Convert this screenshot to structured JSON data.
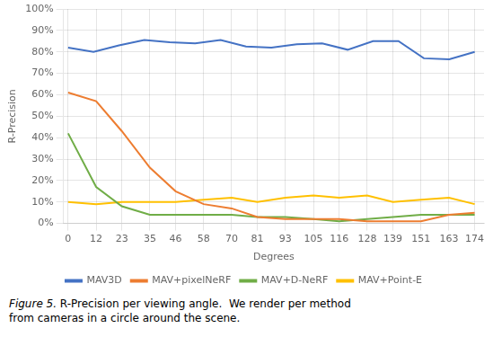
{
  "chart_data": {
    "type": "line",
    "x_label": "Degrees",
    "y_label": "R-Precision",
    "caption": [
      "Figure 5.",
      " R-Precision per viewing angle.  We render per method\nfrom cameras in a circle around the scene."
    ],
    "series": [
      {
        "name": "MAV3D",
        "color": "#4472C4",
        "x": [
          0,
          10.875,
          21.75,
          32.625,
          43.5,
          54.375,
          65.25,
          76.125,
          87,
          97.875,
          108.75,
          119.625,
          130.5,
          141.375,
          152.25,
          163.125,
          174
        ],
        "values": [
          0.82,
          0.8,
          0.83,
          0.855,
          0.845,
          0.84,
          0.855,
          0.825,
          0.82,
          0.835,
          0.84,
          0.81,
          0.85,
          0.85,
          0.77,
          0.765,
          0.8
        ]
      },
      {
        "name": "MAV+pixelNeRF",
        "color": "#ED7D31",
        "x": [
          0,
          12,
          23,
          35,
          46,
          58,
          70,
          81,
          93,
          105,
          116,
          128,
          139,
          151,
          163,
          174
        ],
        "values": [
          0.61,
          0.57,
          0.43,
          0.26,
          0.15,
          0.09,
          0.07,
          0.03,
          0.02,
          0.02,
          0.02,
          0.01,
          0.01,
          0.01,
          0.04,
          0.05
        ]
      },
      {
        "name": "MAV+D-NeRF",
        "color": "#70AD47",
        "x": [
          0,
          12,
          23,
          35,
          46,
          58,
          70,
          81,
          93,
          105,
          116,
          128,
          139,
          151,
          163,
          174
        ],
        "values": [
          0.42,
          0.17,
          0.08,
          0.04,
          0.04,
          0.04,
          0.04,
          0.03,
          0.03,
          0.02,
          0.01,
          0.02,
          0.03,
          0.04,
          0.04,
          0.04
        ]
      },
      {
        "name": "MAV+Point-E",
        "color": "#FFC000",
        "x": [
          0,
          12,
          23,
          35,
          46,
          58,
          70,
          81,
          93,
          105,
          116,
          128,
          139,
          151,
          163,
          174
        ],
        "values": [
          0.1,
          0.09,
          0.1,
          0.1,
          0.1,
          0.11,
          0.12,
          0.1,
          0.12,
          0.13,
          0.12,
          0.13,
          0.1,
          0.11,
          0.12,
          0.09
        ]
      }
    ],
    "xlim": [
      -2,
      178
    ],
    "xticks": [
      0,
      12,
      23,
      35,
      46,
      58,
      70,
      81,
      93,
      105,
      116,
      128,
      139,
      151,
      163,
      174
    ],
    "ylim": [
      0,
      1.0
    ],
    "yticks": [
      {
        "value": 0.0,
        "label": "0%"
      },
      {
        "value": 0.1,
        "label": "10%"
      },
      {
        "value": 0.2,
        "label": "20%"
      },
      {
        "value": 0.3,
        "label": "30%"
      },
      {
        "value": 0.4,
        "label": "40%"
      },
      {
        "value": 0.5,
        "label": "50%"
      },
      {
        "value": 0.6,
        "label": "60%"
      },
      {
        "value": 0.7,
        "label": "70%"
      },
      {
        "value": 0.8,
        "label": "80%"
      },
      {
        "value": 0.9,
        "label": "90%"
      },
      {
        "value": 1.0,
        "label": "100%"
      }
    ],
    "grid": true,
    "legend": "bottom"
  }
}
